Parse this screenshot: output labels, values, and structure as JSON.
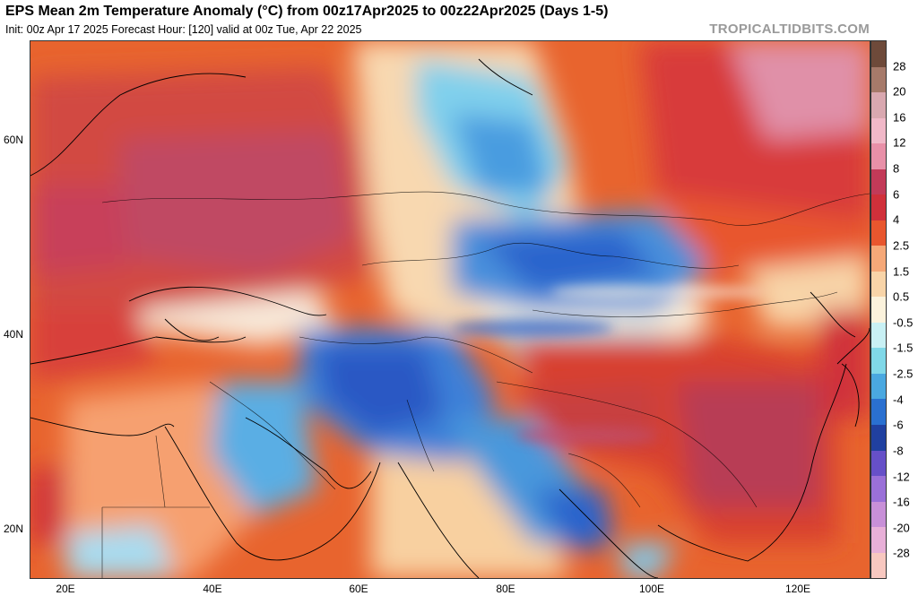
{
  "header": {
    "title": "EPS Mean 2m Temperature Anomaly (°C) from 00z17Apr2025 to 00z22Apr2025 (Days 1-5)",
    "subtitle": "Init: 00z Apr 17 2025   Forecast Hour: [120]   valid at 00z Tue, Apr 22 2025",
    "brand": "TROPICALTIDBITS.COM"
  },
  "map": {
    "lat_labels": [
      "60N",
      "40N",
      "20N"
    ],
    "lon_labels": [
      "20E",
      "40E",
      "60E",
      "80E",
      "100E",
      "120E"
    ]
  },
  "colorbar": {
    "labels": [
      "28",
      "20",
      "16",
      "12",
      "8",
      "6",
      "4",
      "2.5",
      "1.5",
      "0.5",
      "-0.5",
      "-1.5",
      "-2.5",
      "-4",
      "-6",
      "-8",
      "-12",
      "-16",
      "-20",
      "-28"
    ],
    "colors": [
      "#6e4a3a",
      "#a67a6a",
      "#d9a8b0",
      "#f0b8c8",
      "#e890a8",
      "#c23a58",
      "#d0303a",
      "#e8562e",
      "#f5a878",
      "#f8d4a8",
      "#fbf2dc",
      "#c8f0f4",
      "#80d8e8",
      "#4aa8e0",
      "#2a70d0",
      "#2040a0",
      "#6650c8",
      "#9a70d8",
      "#c890d8",
      "#e8b0d8",
      "#f8c8c0"
    ]
  }
}
